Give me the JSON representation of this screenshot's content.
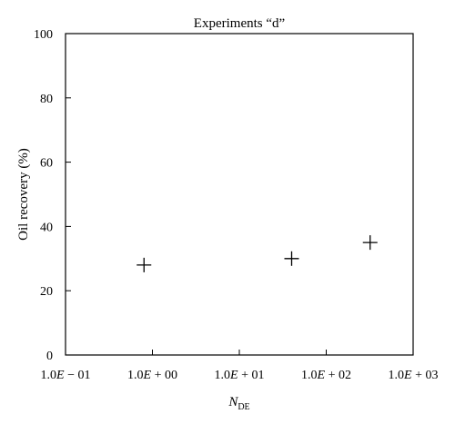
{
  "chart_data": {
    "type": "scatter",
    "title": "Experiments “d”",
    "xlabel": "N",
    "xlabel_sub": "DE",
    "ylabel": "Oil recovery (%)",
    "x_scale": "log",
    "xlim": [
      0.1,
      1000
    ],
    "ylim": [
      0,
      100
    ],
    "x_tick_values": [
      0.1,
      1,
      10,
      100,
      1000
    ],
    "x_ticks": [
      {
        "pre": "1.0",
        "e": "E",
        "post": " − 01"
      },
      {
        "pre": "1.0",
        "e": "E",
        "post": " + 00"
      },
      {
        "pre": "1.0",
        "e": "E",
        "post": " + 01"
      },
      {
        "pre": "1.0",
        "e": "E",
        "post": " + 02"
      },
      {
        "pre": "1.0",
        "e": "E",
        "post": " + 03"
      }
    ],
    "y_ticks": [
      0,
      20,
      40,
      60,
      80,
      100
    ],
    "marker": "plus",
    "grid": false,
    "points": [
      {
        "x": 0.8,
        "y": 28
      },
      {
        "x": 40,
        "y": 30
      },
      {
        "x": 320,
        "y": 35
      }
    ]
  }
}
